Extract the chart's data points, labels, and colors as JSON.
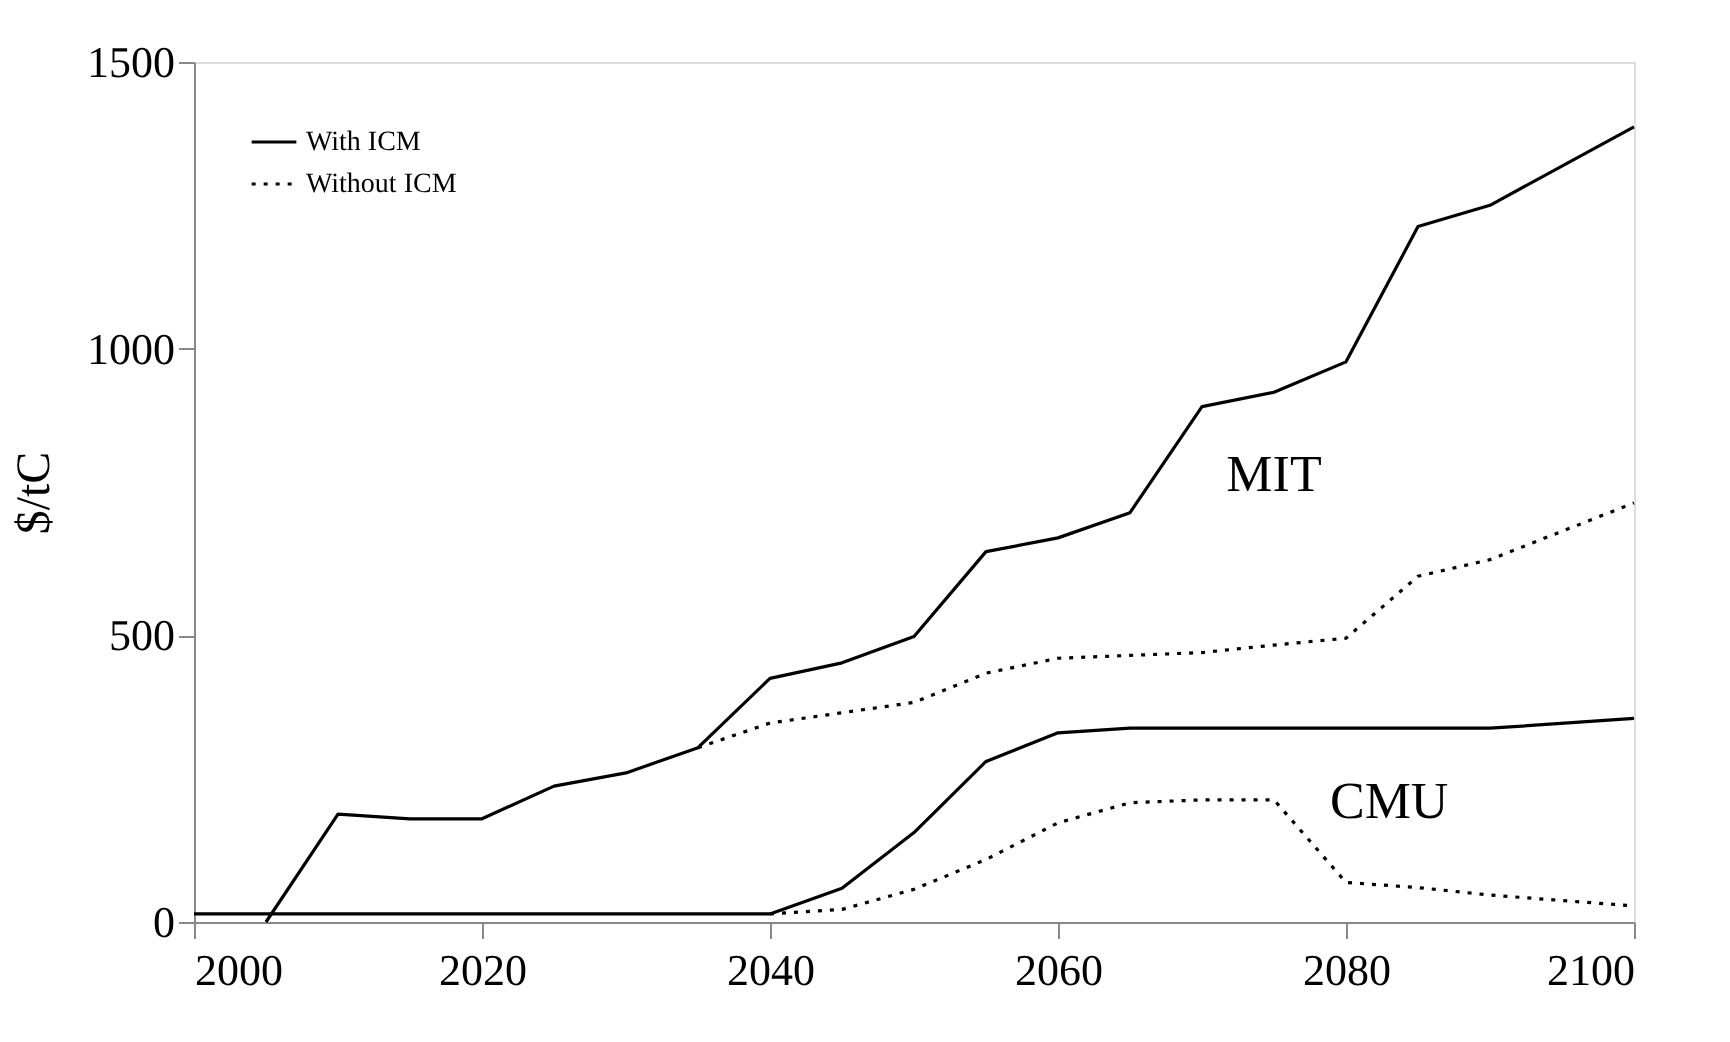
{
  "chart_data": {
    "type": "line",
    "ylabel": "$/tC",
    "xlim": [
      2000,
      2100
    ],
    "xticks": [
      2000,
      2020,
      2040,
      2060,
      2080,
      2100
    ],
    "ylim": [
      0,
      1500
    ],
    "yticks": [
      0,
      500,
      1000,
      1500
    ],
    "grid": false,
    "legend": "top left",
    "marker": "none",
    "series": [
      {
        "name": "With ICM",
        "color": "#000000",
        "line_style": "solid",
        "x": [
          2005,
          2010,
          2015,
          2020,
          2025,
          2030,
          2035,
          2040,
          2045,
          2050,
          2055,
          2060,
          2065,
          2070,
          2075,
          2080,
          2085,
          2090,
          2100
        ],
        "values": [
          0,
          188,
          180,
          180,
          237,
          260,
          304,
          425,
          452,
          498,
          646,
          670,
          714,
          899,
          924,
          977,
          1213,
          1250,
          1387
        ]
      },
      {
        "name": "Without ICM",
        "color": "#000000",
        "line_style": "dotted",
        "x": [
          2035,
          2040,
          2045,
          2050,
          2055,
          2060,
          2065,
          2070,
          2075,
          2080,
          2085,
          2090,
          2100
        ],
        "values": [
          304,
          347,
          365,
          383,
          434,
          460,
          465,
          470,
          483,
          495,
          603,
          632,
          731
        ]
      },
      {
        "color": "#000000",
        "line_style": "solid",
        "x": [
          2000,
          2040,
          2045,
          2050,
          2055,
          2060,
          2065,
          2070,
          2075,
          2080,
          2085,
          2090,
          2100
        ],
        "values": [
          14,
          14,
          59,
          156,
          280,
          330,
          338,
          338,
          338,
          338,
          338,
          338,
          355
        ]
      },
      {
        "color": "#000000",
        "line_style": "dotted",
        "x": [
          2040,
          2045,
          2050,
          2055,
          2060,
          2065,
          2070,
          2075,
          2080,
          2085,
          2090,
          2100
        ],
        "values": [
          14,
          22,
          57,
          109,
          173,
          208,
          213,
          213,
          69,
          60,
          47,
          28
        ]
      }
    ],
    "annotations": [
      "MIT",
      "CMU"
    ]
  }
}
